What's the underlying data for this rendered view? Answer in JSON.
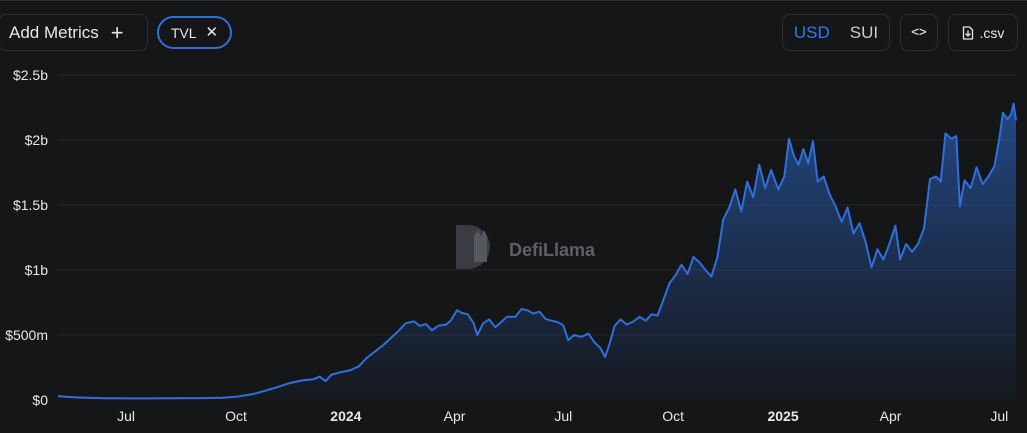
{
  "toolbar": {
    "add_metrics_label": "Add Metrics",
    "add_icon": "+",
    "metric_chip_label": "TVL",
    "close_icon": "✕",
    "currency_options": [
      "USD",
      "SUI"
    ],
    "currency_selected": "USD",
    "embed_label": "<>",
    "csv_label": ".csv"
  },
  "watermark": {
    "text": "DefiLlama"
  },
  "colors": {
    "line": "#2f6fdc",
    "background": "#151618",
    "accent": "#2f7bf2"
  },
  "chart_data": {
    "type": "area",
    "title": "",
    "xlabel": "",
    "ylabel": "",
    "y_tick_labels": [
      "$0",
      "$500m",
      "$1b",
      "$1.5b",
      "$2b",
      "$2.5b"
    ],
    "y_ticks": [
      0,
      500,
      1000,
      1500,
      2000,
      2500
    ],
    "x_tick_labels": [
      {
        "date": "2023-07-01",
        "label": "Jul"
      },
      {
        "date": "2023-10-01",
        "label": "Oct"
      },
      {
        "date": "2024-01-01",
        "label": "2024"
      },
      {
        "date": "2024-04-01",
        "label": "Apr"
      },
      {
        "date": "2024-07-01",
        "label": "Jul"
      },
      {
        "date": "2024-10-01",
        "label": "Oct"
      },
      {
        "date": "2025-01-01",
        "label": "2025"
      },
      {
        "date": "2025-04-01",
        "label": "Apr"
      },
      {
        "date": "2025-07-01",
        "label": "Jul"
      }
    ],
    "xlim": [
      "2023-05-05",
      "2025-07-15"
    ],
    "ylim": [
      0,
      2500
    ],
    "grid": "horizontal",
    "series": [
      {
        "unit": "USD millions",
        "points": [
          [
            "2023-05-05",
            30
          ],
          [
            "2023-05-12",
            25
          ],
          [
            "2023-05-20",
            20
          ],
          [
            "2023-06-01",
            16
          ],
          [
            "2023-06-15",
            13
          ],
          [
            "2023-07-01",
            12
          ],
          [
            "2023-07-20",
            12
          ],
          [
            "2023-08-10",
            13
          ],
          [
            "2023-09-01",
            15
          ],
          [
            "2023-09-20",
            18
          ],
          [
            "2023-10-01",
            25
          ],
          [
            "2023-10-15",
            45
          ],
          [
            "2023-10-25",
            70
          ],
          [
            "2023-11-05",
            100
          ],
          [
            "2023-11-15",
            130
          ],
          [
            "2023-11-25",
            150
          ],
          [
            "2023-12-05",
            160
          ],
          [
            "2023-12-10",
            180
          ],
          [
            "2023-12-15",
            145
          ],
          [
            "2023-12-20",
            195
          ],
          [
            "2023-12-28",
            215
          ],
          [
            "2024-01-05",
            230
          ],
          [
            "2024-01-12",
            260
          ],
          [
            "2024-01-18",
            320
          ],
          [
            "2024-01-25",
            370
          ],
          [
            "2024-02-01",
            420
          ],
          [
            "2024-02-08",
            480
          ],
          [
            "2024-02-15",
            540
          ],
          [
            "2024-02-20",
            590
          ],
          [
            "2024-02-27",
            605
          ],
          [
            "2024-03-03",
            570
          ],
          [
            "2024-03-08",
            585
          ],
          [
            "2024-03-13",
            535
          ],
          [
            "2024-03-18",
            570
          ],
          [
            "2024-03-25",
            580
          ],
          [
            "2024-03-29",
            615
          ],
          [
            "2024-04-03",
            690
          ],
          [
            "2024-04-07",
            670
          ],
          [
            "2024-04-12",
            660
          ],
          [
            "2024-04-17",
            590
          ],
          [
            "2024-04-20",
            500
          ],
          [
            "2024-04-25",
            590
          ],
          [
            "2024-04-30",
            620
          ],
          [
            "2024-05-05",
            560
          ],
          [
            "2024-05-10",
            600
          ],
          [
            "2024-05-15",
            640
          ],
          [
            "2024-05-22",
            640
          ],
          [
            "2024-05-27",
            700
          ],
          [
            "2024-06-01",
            690
          ],
          [
            "2024-06-06",
            665
          ],
          [
            "2024-06-11",
            680
          ],
          [
            "2024-06-16",
            625
          ],
          [
            "2024-06-21",
            610
          ],
          [
            "2024-06-26",
            600
          ],
          [
            "2024-07-01",
            575
          ],
          [
            "2024-07-05",
            460
          ],
          [
            "2024-07-10",
            500
          ],
          [
            "2024-07-16",
            485
          ],
          [
            "2024-07-22",
            510
          ],
          [
            "2024-07-27",
            445
          ],
          [
            "2024-08-01",
            400
          ],
          [
            "2024-08-05",
            330
          ],
          [
            "2024-08-09",
            440
          ],
          [
            "2024-08-13",
            570
          ],
          [
            "2024-08-18",
            620
          ],
          [
            "2024-08-23",
            580
          ],
          [
            "2024-08-28",
            600
          ],
          [
            "2024-09-03",
            640
          ],
          [
            "2024-09-08",
            610
          ],
          [
            "2024-09-13",
            660
          ],
          [
            "2024-09-18",
            650
          ],
          [
            "2024-09-23",
            775
          ],
          [
            "2024-09-28",
            900
          ],
          [
            "2024-10-03",
            960
          ],
          [
            "2024-10-08",
            1040
          ],
          [
            "2024-10-13",
            970
          ],
          [
            "2024-10-18",
            1100
          ],
          [
            "2024-10-23",
            1060
          ],
          [
            "2024-10-28",
            1000
          ],
          [
            "2024-11-02",
            950
          ],
          [
            "2024-11-07",
            1100
          ],
          [
            "2024-11-12",
            1390
          ],
          [
            "2024-11-17",
            1480
          ],
          [
            "2024-11-22",
            1620
          ],
          [
            "2024-11-27",
            1450
          ],
          [
            "2024-12-02",
            1680
          ],
          [
            "2024-12-07",
            1560
          ],
          [
            "2024-12-12",
            1810
          ],
          [
            "2024-12-17",
            1630
          ],
          [
            "2024-12-22",
            1770
          ],
          [
            "2024-12-28",
            1620
          ],
          [
            "2025-01-02",
            1720
          ],
          [
            "2025-01-06",
            2010
          ],
          [
            "2025-01-10",
            1880
          ],
          [
            "2025-01-14",
            1810
          ],
          [
            "2025-01-18",
            1930
          ],
          [
            "2025-01-22",
            1820
          ],
          [
            "2025-01-26",
            1990
          ],
          [
            "2025-01-30",
            1680
          ],
          [
            "2025-02-04",
            1720
          ],
          [
            "2025-02-09",
            1580
          ],
          [
            "2025-02-14",
            1490
          ],
          [
            "2025-02-19",
            1370
          ],
          [
            "2025-02-24",
            1480
          ],
          [
            "2025-03-01",
            1280
          ],
          [
            "2025-03-06",
            1360
          ],
          [
            "2025-03-11",
            1220
          ],
          [
            "2025-03-16",
            1020
          ],
          [
            "2025-03-21",
            1160
          ],
          [
            "2025-03-26",
            1080
          ],
          [
            "2025-03-31",
            1200
          ],
          [
            "2025-04-05",
            1340
          ],
          [
            "2025-04-09",
            1080
          ],
          [
            "2025-04-14",
            1200
          ],
          [
            "2025-04-19",
            1140
          ],
          [
            "2025-04-24",
            1200
          ],
          [
            "2025-04-29",
            1320
          ],
          [
            "2025-05-04",
            1700
          ],
          [
            "2025-05-09",
            1720
          ],
          [
            "2025-05-13",
            1680
          ],
          [
            "2025-05-17",
            2050
          ],
          [
            "2025-05-22",
            2010
          ],
          [
            "2025-05-26",
            2030
          ],
          [
            "2025-05-29",
            1490
          ],
          [
            "2025-06-02",
            1690
          ],
          [
            "2025-06-07",
            1630
          ],
          [
            "2025-06-12",
            1790
          ],
          [
            "2025-06-17",
            1660
          ],
          [
            "2025-06-22",
            1720
          ],
          [
            "2025-06-27",
            1800
          ],
          [
            "2025-07-01",
            2010
          ],
          [
            "2025-07-04",
            2210
          ],
          [
            "2025-07-08",
            2160
          ],
          [
            "2025-07-11",
            2200
          ],
          [
            "2025-07-13",
            2280
          ],
          [
            "2025-07-15",
            2150
          ]
        ]
      }
    ]
  }
}
